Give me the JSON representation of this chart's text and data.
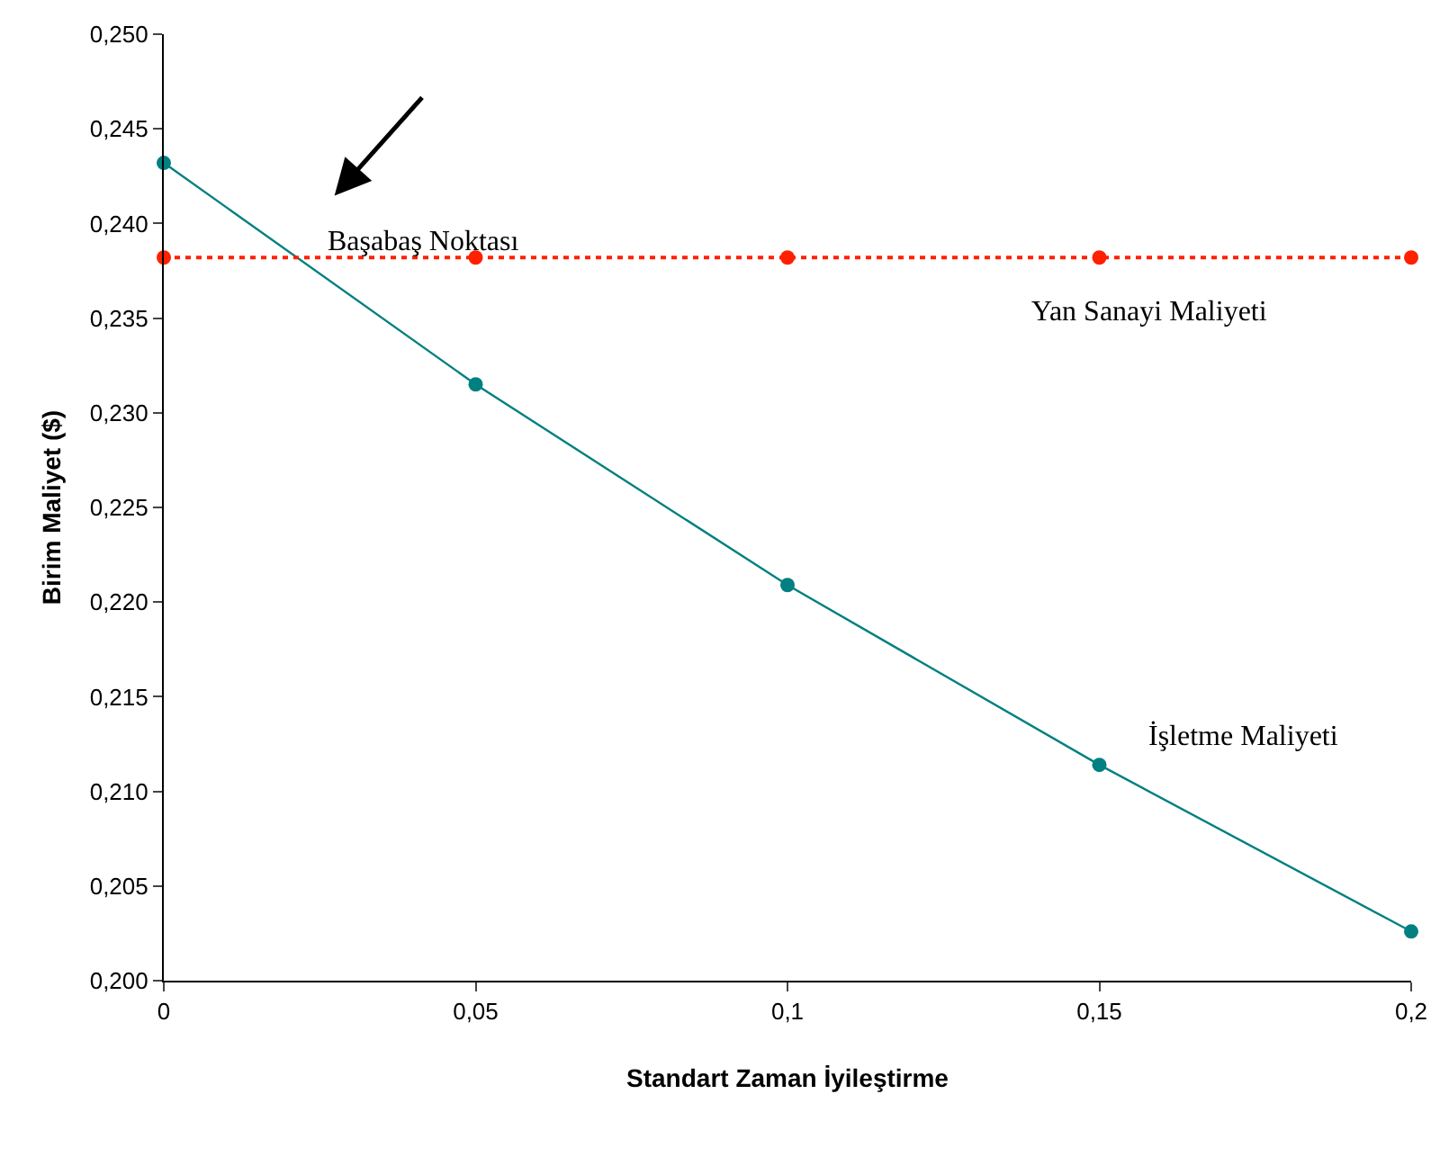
{
  "chart_data": {
    "type": "line",
    "xlabel": "Standart Zaman İyileştirme",
    "ylabel": "Birim Maliyet ($)",
    "x": [
      0,
      0.05,
      0.1,
      0.15,
      0.2
    ],
    "series": [
      {
        "name": "İşletme Maliyeti",
        "color": "#008080",
        "values": [
          0.2432,
          0.2315,
          0.2209,
          0.2114,
          0.2026
        ],
        "line_style": "solid"
      },
      {
        "name": "Yan Sanayi Maliyeti",
        "color": "#ff2000",
        "values": [
          0.2382,
          0.2382,
          0.2382,
          0.2382,
          0.2382
        ],
        "line_style": "dotted"
      }
    ],
    "annotations": [
      "Başabaş Noktası"
    ],
    "xlim": [
      0,
      0.2
    ],
    "xticks": [
      0,
      {
        "value": 0.05,
        "label": "0,05"
      },
      {
        "value": 0.1,
        "label": "0,1"
      },
      {
        "value": 0.15,
        "label": "0,15"
      },
      {
        "value": 0.2,
        "label": "0,2"
      }
    ],
    "ylim": [
      0.2,
      0.25
    ],
    "yticks": [
      {
        "value": 0.2,
        "label": "0,200"
      },
      {
        "value": 0.205,
        "label": "0,205"
      },
      {
        "value": 0.21,
        "label": "0,210"
      },
      {
        "value": 0.215,
        "label": "0,215"
      },
      {
        "value": 0.22,
        "label": "0,220"
      },
      {
        "value": 0.225,
        "label": "0,225"
      },
      {
        "value": 0.23,
        "label": "0,230"
      },
      {
        "value": 0.235,
        "label": "0,235"
      },
      {
        "value": 0.24,
        "label": "0,240"
      },
      {
        "value": 0.245,
        "label": "0,245"
      },
      {
        "value": 0.25,
        "label": "0,250"
      }
    ],
    "legend": false,
    "marker": "circle"
  }
}
